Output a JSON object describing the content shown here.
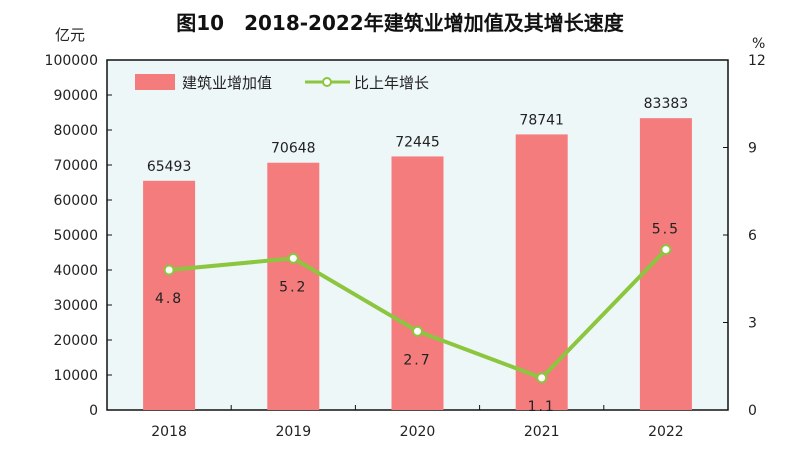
{
  "chart_data": {
    "type": "bar+line",
    "title": "图10　2018-2022年建筑业增加值及其增长速度",
    "ylabel_left": "亿元",
    "ylabel_right": "%",
    "categories": [
      "2018",
      "2019",
      "2020",
      "2021",
      "2022"
    ],
    "series": [
      {
        "name": "建筑业增加值",
        "type": "bar",
        "axis": "left",
        "values": [
          65493,
          70648,
          72445,
          78741,
          83383
        ],
        "color": "#f47c7c"
      },
      {
        "name": "比上年增长",
        "type": "line",
        "axis": "right",
        "values": [
          4.8,
          5.2,
          2.7,
          1.1,
          5.5
        ],
        "color": "#8cc63f"
      }
    ],
    "ylim_left": [
      0,
      100000
    ],
    "yticks_left": [
      0,
      10000,
      20000,
      30000,
      40000,
      50000,
      60000,
      70000,
      80000,
      90000,
      100000
    ],
    "ylim_right": [
      0,
      12
    ],
    "yticks_right": [
      0,
      3,
      6,
      9,
      12
    ],
    "legend": "top-left",
    "grid": false,
    "plot_background": "#eef7f8"
  }
}
